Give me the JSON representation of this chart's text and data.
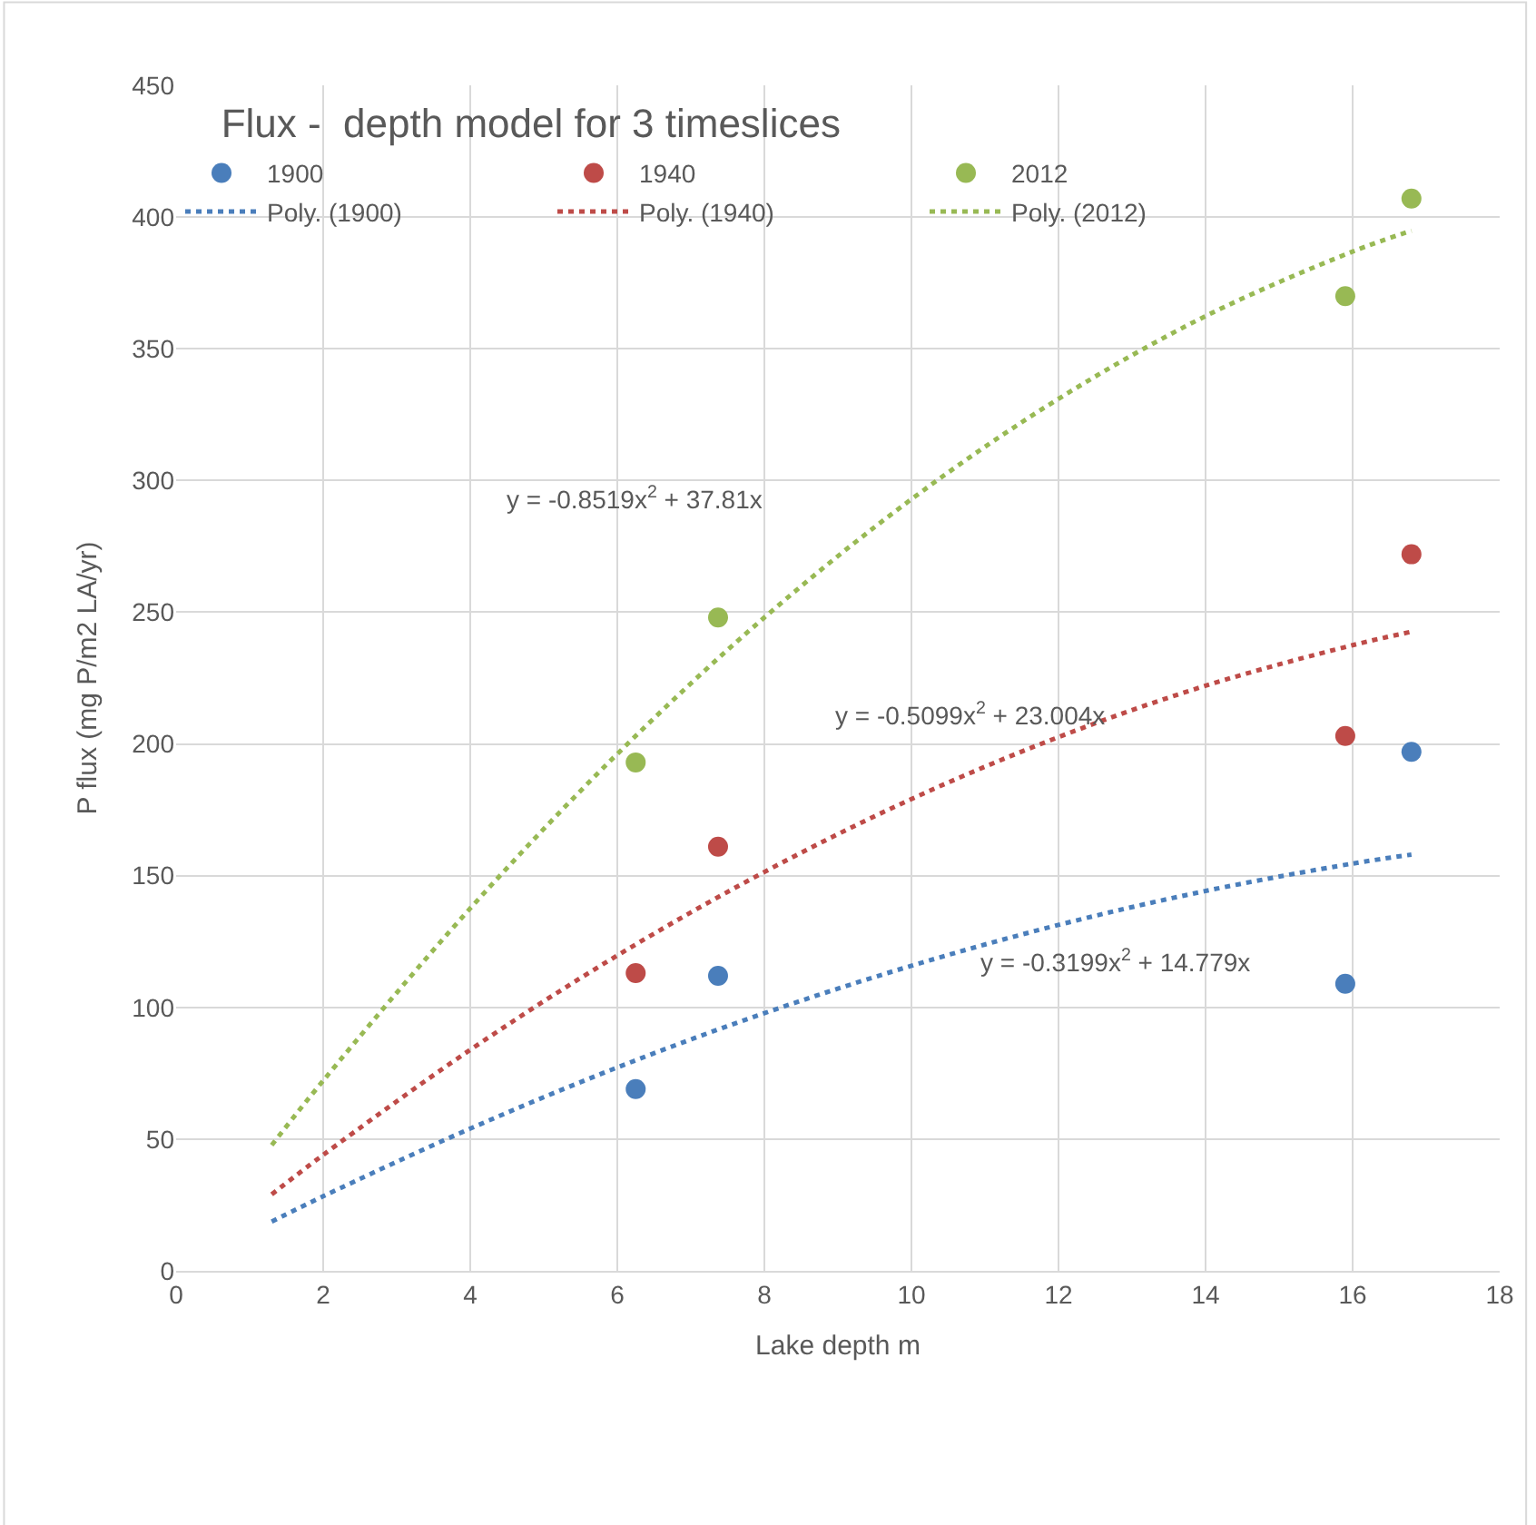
{
  "chart_data": {
    "type": "scatter",
    "title": "Flux -  depth model for 3 timeslices",
    "xlabel": "Lake depth m",
    "ylabel": "P flux (mg P/m2 LA/yr)",
    "xlim": [
      0,
      18
    ],
    "xticks": [
      0,
      2,
      4,
      6,
      8,
      10,
      12,
      14,
      16,
      18
    ],
    "ylim": [
      0,
      450
    ],
    "yticks": [
      0,
      50,
      100,
      150,
      200,
      250,
      300,
      350,
      400,
      450
    ],
    "grid": true,
    "legend": "top left",
    "series": [
      {
        "name": "1900",
        "marker": "circle",
        "color": "#4a7ebb",
        "x": [
          6.25,
          7.37,
          15.9,
          16.8
        ],
        "values": [
          69,
          112,
          109,
          197
        ]
      },
      {
        "name": "1940",
        "marker": "circle",
        "color": "#be4b48",
        "x": [
          6.25,
          7.37,
          15.9,
          16.8
        ],
        "values": [
          113,
          161,
          203,
          272
        ]
      },
      {
        "name": "2012",
        "marker": "circle",
        "color": "#98b954",
        "x": [
          6.25,
          7.37,
          15.9,
          16.8
        ],
        "values": [
          193,
          248,
          370,
          407
        ]
      },
      {
        "name": "Poly. (1900)",
        "type": "line",
        "line_style": "dotted",
        "color": "#4a7ebb",
        "x": [
          1.3,
          2,
          4,
          6,
          8,
          10,
          12,
          14,
          16,
          16.8
        ],
        "values": [
          18.7,
          28.3,
          54.0,
          77.2,
          97.8,
          115.8,
          131.3,
          144.2,
          154.6,
          158.0
        ]
      },
      {
        "name": "Poly. (1940)",
        "type": "line",
        "line_style": "dotted",
        "color": "#be4b48",
        "x": [
          1.3,
          2,
          4,
          6,
          8,
          10,
          12,
          14,
          16,
          16.8
        ],
        "values": [
          29.0,
          44.0,
          83.9,
          119.7,
          151.4,
          179.1,
          202.6,
          222.1,
          237.5,
          242.6
        ]
      },
      {
        "name": "Poly. (2012)",
        "type": "line",
        "line_style": "dotted",
        "color": "#98b954",
        "x": [
          1.3,
          2,
          4,
          6,
          8,
          10,
          12,
          14,
          16,
          16.8
        ],
        "values": [
          47.7,
          72.2,
          137.6,
          196.2,
          248.0,
          292.9,
          331.0,
          362.4,
          386.9,
          394.8
        ]
      }
    ],
    "annotations": [
      "y = -0.8519x$^{2}$ + 37.81x",
      "y = -0.5099x$^{2}$ + 23.004x",
      "y = -0.3199x$^{2}$ + 14.779x"
    ]
  }
}
